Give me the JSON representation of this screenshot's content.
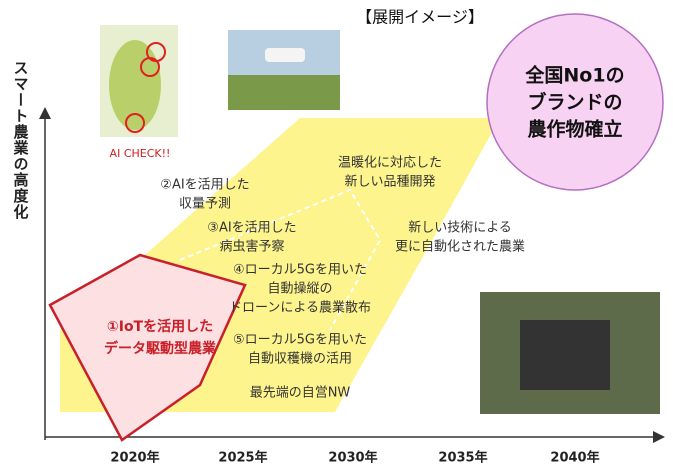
{
  "title": "【展開イメージ】",
  "y_axis_label": "スマート農業の高度化",
  "x_axis": {
    "labels": [
      "2020年",
      "2025年",
      "2030年",
      "2035年",
      "2040年"
    ]
  },
  "photo_caption": "AI CHECK!!",
  "stage_1": [
    "①IoTを活用した",
    "データ駆動型農業"
  ],
  "stages": [
    [
      "②AIを活用した",
      "収量予測"
    ],
    [
      "③AIを活用した",
      "病虫害予察"
    ],
    [
      "④ローカル5Gを用いた",
      "自動操縦の",
      "ドローンによる農業散布"
    ],
    [
      "⑤ローカル5Gを用いた",
      "自動収穫機の活用"
    ],
    [
      "最先端の自営NW"
    ],
    [
      "温暖化に対応した",
      "新しい品種開発"
    ],
    [
      "新しい技術による",
      "更に自動化された農業"
    ]
  ],
  "goal": [
    "全国No1の",
    "ブランドの",
    "農作物確立"
  ]
}
